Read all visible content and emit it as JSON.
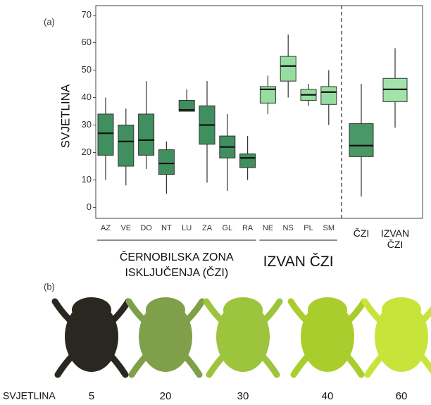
{
  "panel_a_label": "(a)",
  "chart_data": {
    "type": "box",
    "y_label": "SVJETLINA",
    "categories": [
      "AZ",
      "VE",
      "DO",
      "NT",
      "LU",
      "ZA",
      "GL",
      "RA",
      "NE",
      "NS",
      "PL",
      "SM",
      "ČZI",
      "IZVAN ČZI"
    ],
    "min": [
      10,
      8,
      14,
      5,
      35,
      9,
      6,
      10,
      34,
      40,
      37,
      30,
      4,
      29
    ],
    "q1": [
      19,
      15,
      19,
      12,
      35,
      23,
      18,
      14.5,
      38,
      46,
      39,
      37.5,
      18.5,
      38.5
    ],
    "median": [
      27,
      24,
      24.5,
      16,
      35.5,
      30,
      22,
      18,
      43,
      51.5,
      41,
      42,
      22.5,
      43
    ],
    "q3": [
      34,
      30,
      34,
      21,
      39,
      37,
      26,
      19.5,
      44,
      55,
      43,
      44,
      30.5,
      47
    ],
    "max": [
      40,
      36,
      46,
      24,
      43,
      46,
      34,
      26,
      48,
      63,
      45,
      50,
      45,
      58
    ],
    "colors": [
      "#3f8f5f",
      "#3f8f5f",
      "#3f8f5f",
      "#3f8f5f",
      "#3f8f5f",
      "#3f8f5f",
      "#3f8f5f",
      "#3f8f5f",
      "#96dea0",
      "#96dea0",
      "#96dea0",
      "#96dea0",
      "#4a9866",
      "#a2e3aa"
    ],
    "groups": [
      {
        "label": "ČERNOBILSKA ZONA ISKLJUČENJA (ČZI)",
        "members": [
          "AZ",
          "VE",
          "DO",
          "NT",
          "LU",
          "ZA",
          "GL",
          "RA"
        ]
      },
      {
        "label": "IZVAN ČZI",
        "members": [
          "NE",
          "NS",
          "PL",
          "SM"
        ]
      }
    ],
    "ylim": [
      -4,
      73.5
    ],
    "yticks": [
      0,
      10,
      20,
      30,
      40,
      50,
      60,
      70
    ]
  },
  "panel_b": {
    "label": "(b)",
    "row_label": "SVJETLINA",
    "values": [
      5,
      20,
      30,
      40,
      60
    ],
    "colors": [
      "#2a2620",
      "#7fa048",
      "#9cc43c",
      "#aacd2e",
      "#c8e43a"
    ]
  }
}
